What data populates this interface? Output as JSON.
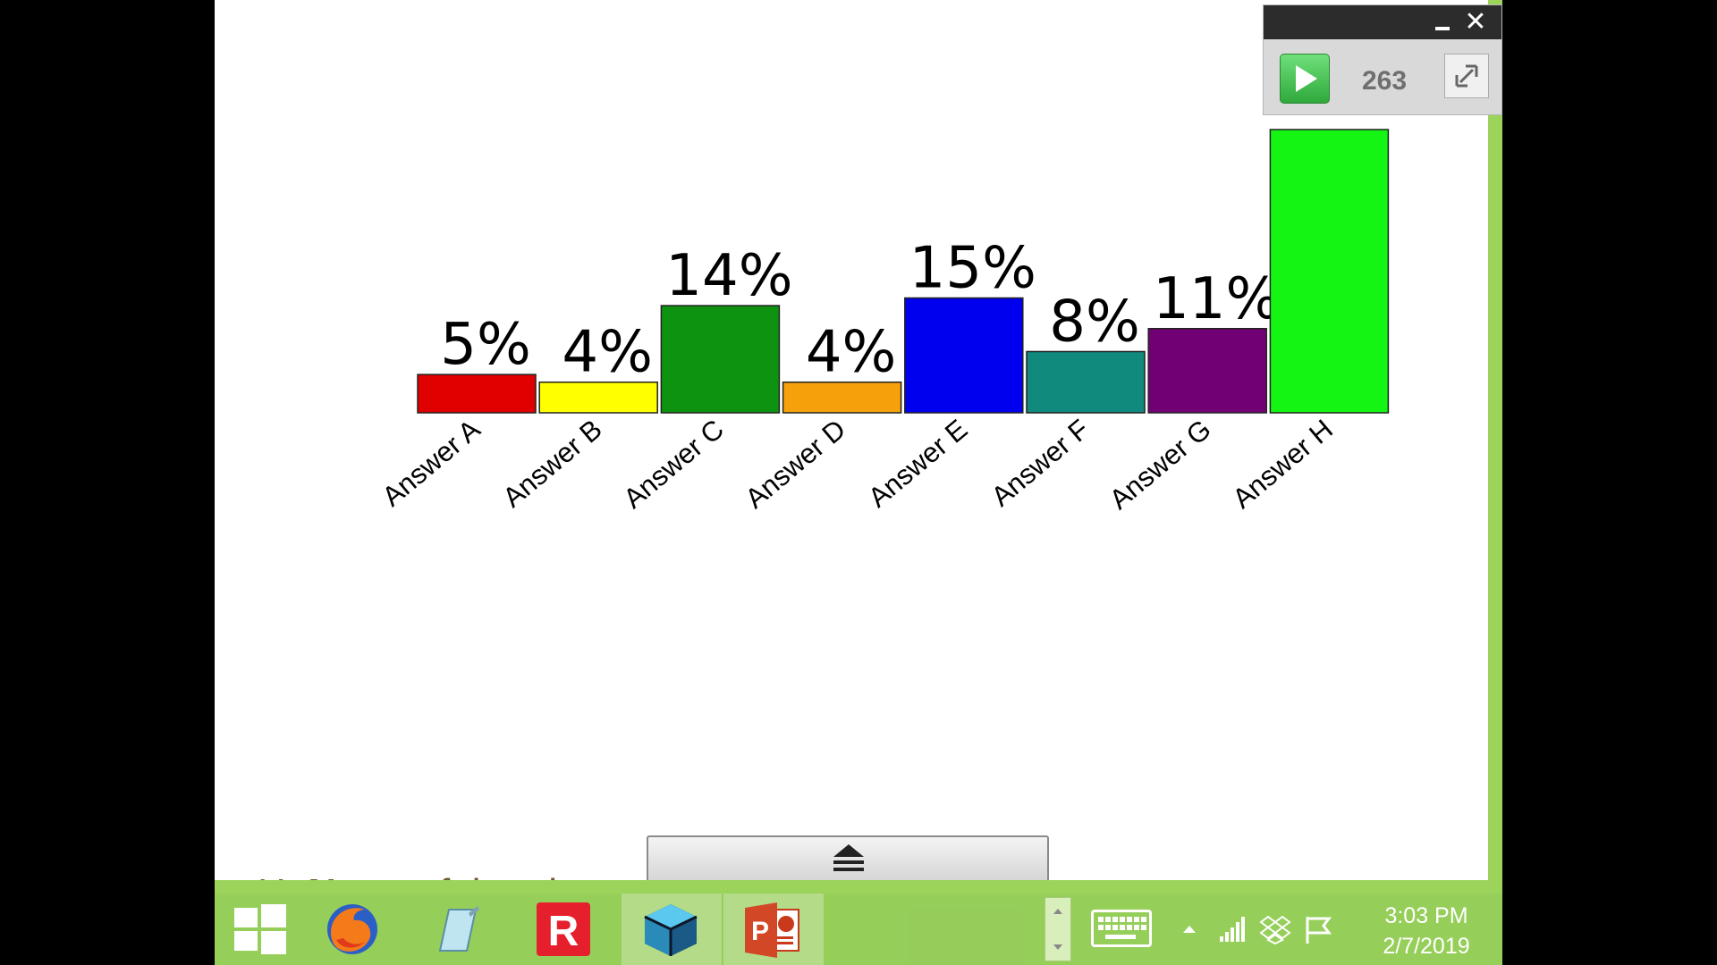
{
  "chart_data": {
    "type": "bar",
    "categories": [
      "Answer A",
      "Answer B",
      "Answer C",
      "Answer D",
      "Answer E",
      "Answer F",
      "Answer G",
      "Answer H"
    ],
    "values": [
      5,
      4,
      14,
      4,
      15,
      8,
      11,
      37
    ],
    "value_labels": [
      "5%",
      "4%",
      "14%",
      "4%",
      "15%",
      "8%",
      "11%",
      ""
    ],
    "colors": [
      "#e00000",
      "#ffff00",
      "#0e9310",
      "#f6a10c",
      "#0000ee",
      "#0f8a7d",
      "#720075",
      "#14f514"
    ],
    "ylim": [
      0,
      37
    ]
  },
  "poll_widget": {
    "response_count": "263",
    "icons": {
      "minimize": "minimize-icon",
      "close": "close-icon",
      "play": "play-icon",
      "expand": "expand-icon"
    }
  },
  "slide_behind": {
    "bullet": "H.",
    "bold": "None",
    "rest": "of the above are false."
  },
  "taskbar": {
    "apps": [
      "windows-start-icon",
      "firefox-icon",
      "notepad-icon",
      "r-app-icon",
      "cube-app-icon",
      "powerpoint-icon"
    ],
    "tray": [
      "keyboard-icon",
      "show-hidden-icons-icon",
      "network-signal-icon",
      "dropbox-icon",
      "action-center-flag-icon"
    ],
    "time": "3:03 PM",
    "date": "2/7/2019"
  }
}
